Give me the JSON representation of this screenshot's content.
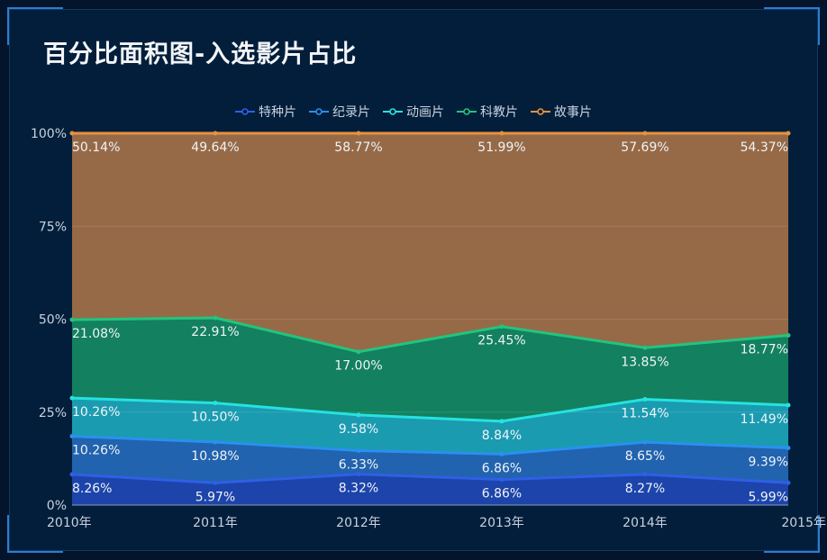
{
  "title": "百分比面积图-入选影片占比",
  "chart_data": {
    "type": "area",
    "stacked": "percent",
    "title": "百分比面积图-入选影片占比",
    "categories": [
      "2010年",
      "2011年",
      "2012年",
      "2013年",
      "2014年",
      "2015年"
    ],
    "y_ticks": [
      "0%",
      "25%",
      "50%",
      "75%",
      "100%"
    ],
    "ylim": [
      0,
      100
    ],
    "legend_position": "top-center",
    "series": [
      {
        "name": "特种片",
        "line_color": "#2f5fe6",
        "area_color": "#1c44ab",
        "values": [
          8.26,
          5.97,
          8.32,
          6.86,
          8.27,
          5.99
        ],
        "labels": [
          "8.26%",
          "5.97%",
          "8.32%",
          "6.86%",
          "8.27%",
          "5.99%"
        ]
      },
      {
        "name": "纪录片",
        "line_color": "#2a90f0",
        "area_color": "#2163ae",
        "values": [
          10.26,
          10.98,
          6.33,
          6.86,
          8.65,
          9.39
        ],
        "labels": [
          "10.26%",
          "10.98%",
          "6.33%",
          "6.86%",
          "8.65%",
          "9.39%"
        ]
      },
      {
        "name": "动画片",
        "line_color": "#26e2e0",
        "area_color": "#1a9bb0",
        "values": [
          10.26,
          10.5,
          9.58,
          8.84,
          11.54,
          11.49
        ],
        "labels": [
          "10.26%",
          "10.50%",
          "9.58%",
          "8.84%",
          "11.54%",
          "11.49%"
        ]
      },
      {
        "name": "科教片",
        "line_color": "#22c47e",
        "area_color": "#13805f",
        "values": [
          21.08,
          22.91,
          17.0,
          25.45,
          13.85,
          18.77
        ],
        "labels": [
          "21.08%",
          "22.91%",
          "17.00%",
          "25.45%",
          "13.85%",
          "18.77%"
        ]
      },
      {
        "name": "故事片",
        "line_color": "#e8913f",
        "area_color": "#966a47",
        "values": [
          50.14,
          49.64,
          58.77,
          51.99,
          57.69,
          54.37
        ],
        "labels": [
          "50.14%",
          "49.64%",
          "58.77%",
          "51.99%",
          "57.69%",
          "54.37%"
        ]
      }
    ]
  }
}
